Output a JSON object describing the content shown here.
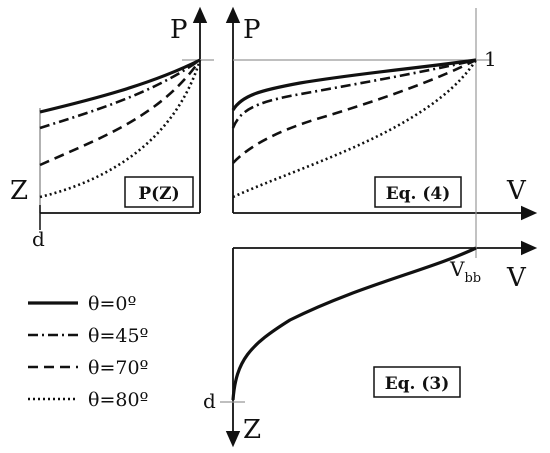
{
  "labels": {
    "pz_axis_p": "P",
    "pz_axis_z": "Z",
    "pz_d": "d",
    "pz_box": "P(Z)",
    "pv_axis_p": "P",
    "pv_axis_v": "V",
    "pv_one": "1",
    "pv_box": "Eq. (4)",
    "vz_axis_v": "V",
    "vz_axis_z": "Z",
    "vz_d": "d",
    "vz_box": "Eq. (3)",
    "vbb_main": "V",
    "vbb_sub": "bb"
  },
  "legend": [
    {
      "label": "θ=0º",
      "style": "solid"
    },
    {
      "label": "θ=45º",
      "style": "dashdot"
    },
    {
      "label": "θ=70º",
      "style": "dashed"
    },
    {
      "label": "θ=80º",
      "style": "dotted"
    }
  ],
  "colors": {
    "line": "#111111",
    "frame": "#999999"
  }
}
